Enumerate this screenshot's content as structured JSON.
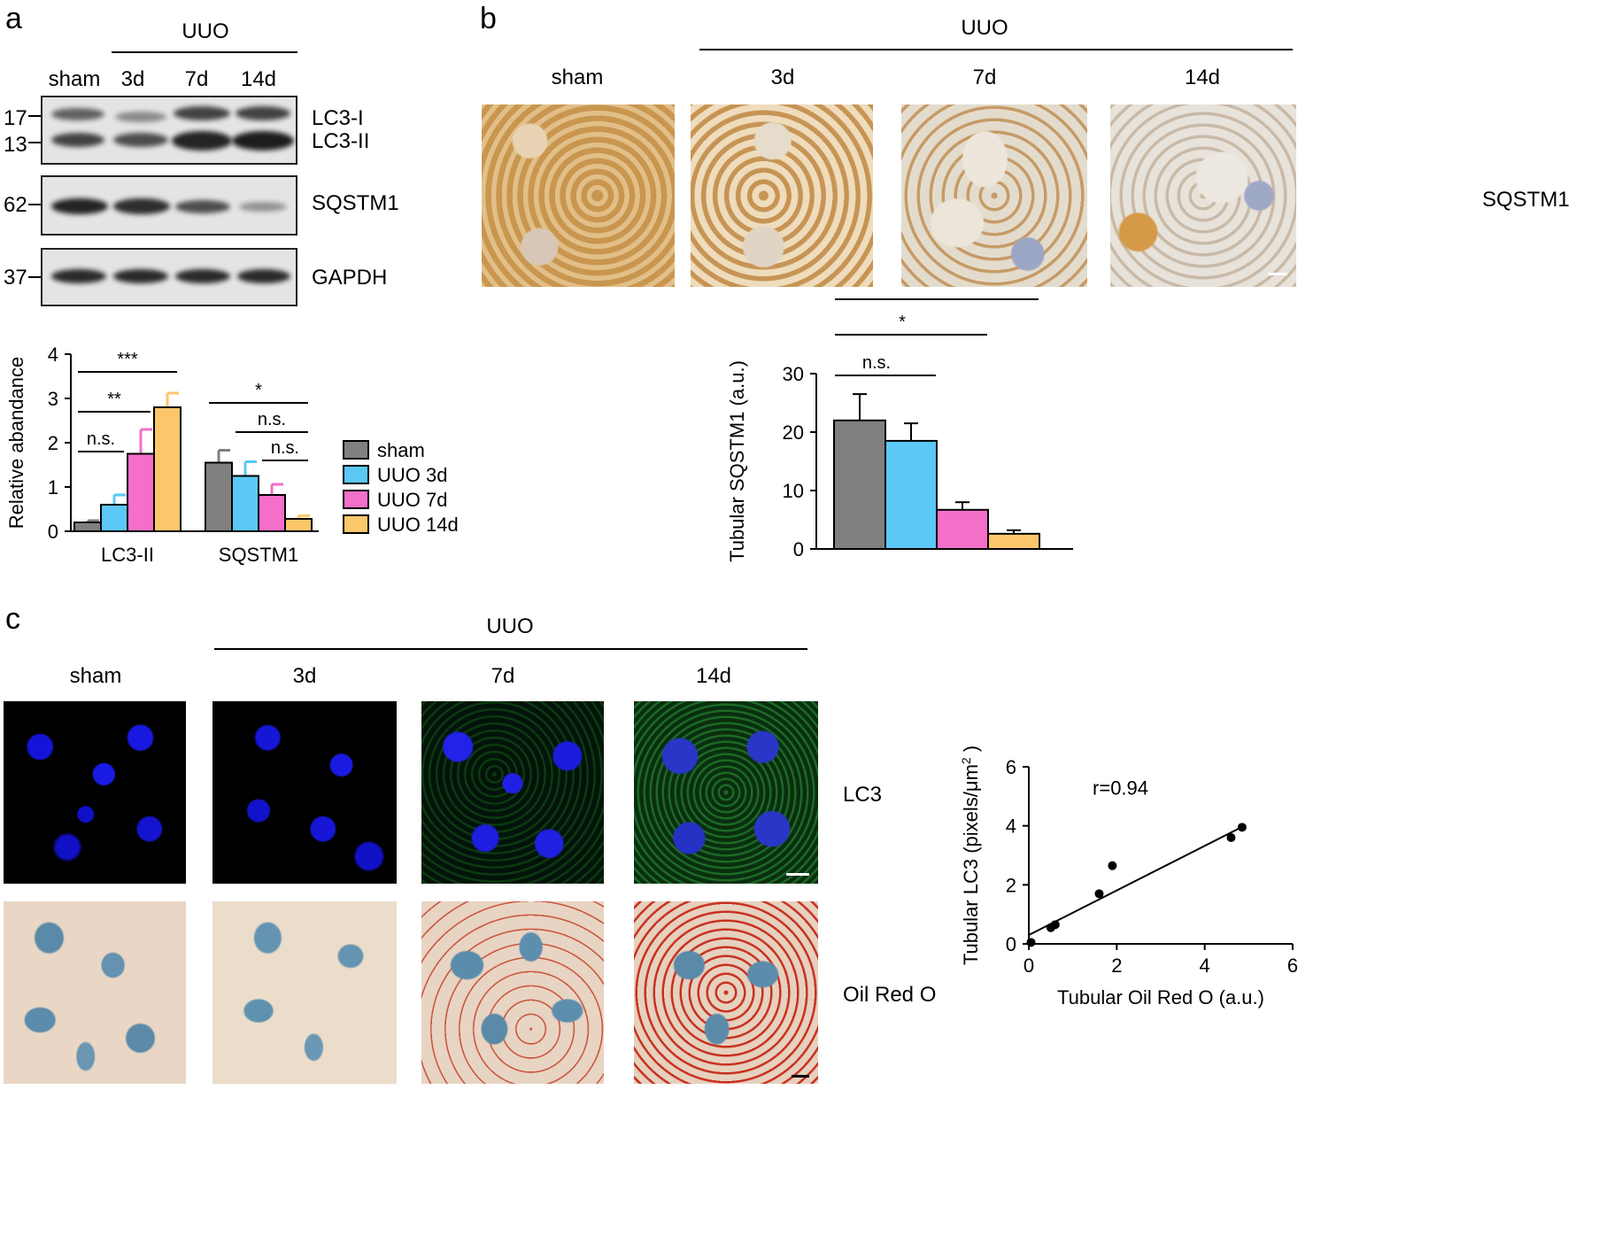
{
  "panel_a": {
    "letter": "a",
    "group_label": "UUO",
    "lanes": [
      "sham",
      "3d",
      "7d",
      "14d"
    ],
    "blots": [
      {
        "name": "lc3",
        "labels": [
          "LC3-I",
          "LC3-II"
        ],
        "markers": [
          "17",
          "13"
        ]
      },
      {
        "name": "sqstm1",
        "labels": [
          "SQSTM1"
        ],
        "markers": [
          "62"
        ]
      },
      {
        "name": "gapdh",
        "labels": [
          "GAPDH"
        ],
        "markers": [
          "37"
        ]
      }
    ]
  },
  "panel_b": {
    "letter": "b",
    "group_label": "UUO",
    "columns": [
      "sham",
      "3d",
      "7d",
      "14d"
    ],
    "row_label": "SQSTM1"
  },
  "panel_c": {
    "letter": "c",
    "group_label": "UUO",
    "columns": [
      "sham",
      "3d",
      "7d",
      "14d"
    ],
    "row_labels": [
      "LC3",
      "Oil Red  O"
    ]
  },
  "colors": {
    "sham": "#808080",
    "uuo3d": "#5bc8f5",
    "uuo7d": "#f36fc8",
    "uuo14d": "#fcc76a"
  },
  "chart_data": [
    {
      "type": "bar",
      "categories": [
        "LC3-II",
        "SQSTM1"
      ],
      "series": [
        {
          "name": "sham",
          "values": [
            0.2,
            1.55
          ],
          "errors": [
            0.04,
            0.28
          ]
        },
        {
          "name": "UUO 3d",
          "values": [
            0.6,
            1.25
          ],
          "errors": [
            0.22,
            0.32
          ]
        },
        {
          "name": "UUO 7d",
          "values": [
            1.75,
            0.82
          ],
          "errors": [
            0.55,
            0.24
          ]
        },
        {
          "name": "UUO 14d",
          "values": [
            2.8,
            0.28
          ],
          "errors": [
            0.32,
            0.07
          ]
        }
      ],
      "ylabel": "Relative abandance",
      "ylim": [
        0,
        4
      ],
      "yticks": [
        "0",
        "1",
        "2",
        "3",
        "4"
      ],
      "legend": "right",
      "significance": [
        "n.s.",
        "**",
        "***",
        "n.s.",
        "n.s.",
        "*"
      ]
    },
    {
      "type": "bar",
      "categories": [
        "sham",
        "UUO 3d",
        "UUO 7d",
        "UUO 14d"
      ],
      "values": [
        22,
        18.5,
        6.7,
        2.6
      ],
      "errors": [
        4.5,
        3.0,
        1.3,
        0.6
      ],
      "ylabel": "Tubular SQSTM1 (a.u.)",
      "ylim": [
        0,
        30
      ],
      "yticks": [
        "0",
        "10",
        "20",
        "30"
      ],
      "significance": [
        "n.s.",
        "*",
        "**"
      ]
    },
    {
      "type": "scatter",
      "x": [
        0.05,
        0.5,
        0.6,
        1.6,
        1.9,
        4.6,
        4.85
      ],
      "y": [
        0.05,
        0.55,
        0.65,
        1.7,
        2.65,
        3.6,
        3.95
      ],
      "fit_line": {
        "x": [
          0,
          4.9
        ],
        "y": [
          0.3,
          4.0
        ]
      },
      "annotation": "r=0.94",
      "xlabel": "Tubular Oil Red O (a.u.)",
      "ylabel_main": "Tubular LC3 (pixels/μm",
      "ylabel_sup": "2",
      "ylabel_close": " )",
      "xlim": [
        0,
        6
      ],
      "ylim": [
        0,
        6
      ],
      "xticks": [
        "0",
        "2",
        "4",
        "6"
      ],
      "yticks": [
        "0",
        "2",
        "4",
        "6"
      ]
    }
  ]
}
